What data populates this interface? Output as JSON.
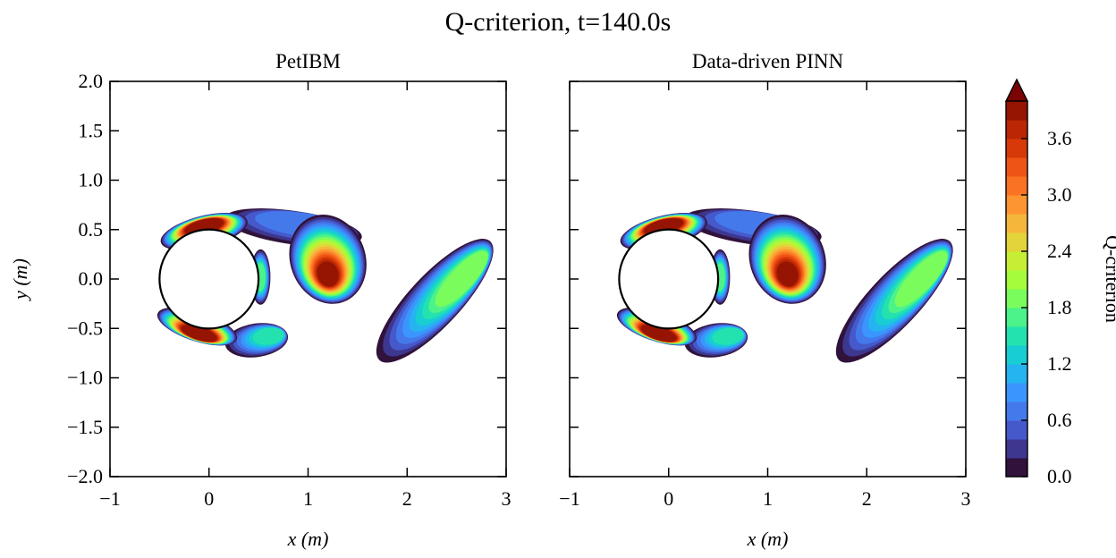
{
  "figure": {
    "title": "Q-criterion, t=140.0s",
    "colorbar_label": "Q-criterion"
  },
  "chart_data": [
    {
      "type": "contour",
      "title": "PetIBM",
      "xlabel": "x (m)",
      "ylabel": "y (m)",
      "xlim": [
        -1,
        3
      ],
      "ylim": [
        -2,
        2
      ],
      "x_ticks": [
        "−1",
        "0",
        "1",
        "2",
        "3"
      ],
      "y_ticks": [
        "2.0",
        "1.5",
        "1.0",
        "0.5",
        "0.0",
        "−0.5",
        "−1.0",
        "−1.5",
        "−2.0"
      ],
      "cylinder": {
        "center": [
          0,
          0
        ],
        "radius": 0.5
      },
      "vortex_regions": [
        {
          "name": "upper-shear-layer",
          "x": [
            -0.5,
            0.4
          ],
          "y": [
            0.3,
            0.65
          ],
          "peak_q": 4.0
        },
        {
          "name": "lower-shear-layer",
          "x": [
            -0.5,
            0.3
          ],
          "y": [
            -0.65,
            -0.3
          ],
          "peak_q": 4.0
        },
        {
          "name": "arc-vortex",
          "x": [
            0.7,
            1.65
          ],
          "y": [
            -0.2,
            0.75
          ],
          "peak_q": 4.0
        },
        {
          "name": "lower-small-vortex",
          "x": [
            0.2,
            0.8
          ],
          "y": [
            -0.9,
            -0.4
          ],
          "peak_q": 1.5
        },
        {
          "name": "downstream-vortex",
          "x": [
            1.6,
            3.0
          ],
          "y": [
            -0.95,
            0.5
          ],
          "peak_q": 2.0
        }
      ]
    },
    {
      "type": "contour",
      "title": "Data-driven PINN",
      "xlabel": "x (m)",
      "ylabel": "",
      "xlim": [
        -1,
        3
      ],
      "ylim": [
        -2,
        2
      ],
      "x_ticks": [
        "−1",
        "0",
        "1",
        "2",
        "3"
      ],
      "cylinder": {
        "center": [
          0,
          0
        ],
        "radius": 0.5
      },
      "vortex_regions": [
        {
          "name": "upper-shear-layer",
          "x": [
            -0.5,
            0.4
          ],
          "y": [
            0.3,
            0.65
          ],
          "peak_q": 4.0
        },
        {
          "name": "lower-shear-layer",
          "x": [
            -0.5,
            0.3
          ],
          "y": [
            -0.65,
            -0.3
          ],
          "peak_q": 4.0
        },
        {
          "name": "arc-vortex",
          "x": [
            0.7,
            1.65
          ],
          "y": [
            -0.2,
            0.75
          ],
          "peak_q": 4.0
        },
        {
          "name": "lower-small-vortex",
          "x": [
            0.2,
            0.8
          ],
          "y": [
            -0.9,
            -0.4
          ],
          "peak_q": 1.5
        },
        {
          "name": "downstream-vortex",
          "x": [
            1.6,
            3.0
          ],
          "y": [
            -0.95,
            0.5
          ],
          "peak_q": 2.0
        }
      ]
    }
  ],
  "colorbar": {
    "min": 0.0,
    "max": 4.0,
    "levels": 20,
    "extend": "max",
    "ticks": [
      "0.0",
      "0.6",
      "1.2",
      "1.8",
      "2.4",
      "3.0",
      "3.6"
    ],
    "colors": [
      "#30123b",
      "#3e378f",
      "#4559cb",
      "#4479ec",
      "#3a96fd",
      "#25b4f0",
      "#18cdd3",
      "#23e2b0",
      "#4cf28a",
      "#7afd5c",
      "#a4fc3c",
      "#c6ee35",
      "#e2d43a",
      "#f5b73b",
      "#fd9531",
      "#fa7324",
      "#ee5415",
      "#d73a08",
      "#bb2604",
      "#961402",
      "#7a0403"
    ]
  }
}
